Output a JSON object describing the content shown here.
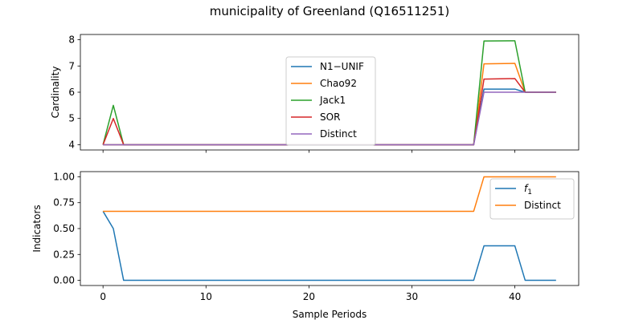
{
  "figure": {
    "title": "municipality of Greenland (Q16511251)",
    "xlabel": "Sample Periods"
  },
  "colors": {
    "blue": "#1f77b4",
    "orange": "#ff7f0e",
    "green": "#2ca02c",
    "red": "#d62728",
    "purple": "#9467bd"
  },
  "chart_data": [
    {
      "type": "line",
      "ylabel": "Cardinality",
      "xlim": [
        -2.2,
        46.2
      ],
      "ylim": [
        3.8,
        8.2
      ],
      "xticks": [
        0,
        10,
        20,
        30,
        40
      ],
      "yticks": [
        4,
        5,
        6,
        7,
        8
      ],
      "show_xtick_labels": false,
      "legend_position": "center",
      "series": [
        {
          "name": "N1−UNIF",
          "color": "#1f77b4",
          "points": [
            [
              0,
              4
            ],
            [
              1,
              4
            ],
            [
              2,
              4
            ],
            [
              36,
              4
            ],
            [
              37,
              6.12
            ],
            [
              40,
              6.12
            ],
            [
              41,
              6
            ],
            [
              44,
              6
            ]
          ]
        },
        {
          "name": "Chao92",
          "color": "#ff7f0e",
          "points": [
            [
              0,
              4
            ],
            [
              1,
              4
            ],
            [
              2,
              4
            ],
            [
              36,
              4
            ],
            [
              37,
              7.08
            ],
            [
              40,
              7.1
            ],
            [
              41,
              6
            ],
            [
              44,
              6
            ]
          ]
        },
        {
          "name": "Jack1",
          "color": "#2ca02c",
          "points": [
            [
              0,
              4
            ],
            [
              1,
              5.5
            ],
            [
              2,
              4
            ],
            [
              36,
              4
            ],
            [
              37,
              7.95
            ],
            [
              40,
              7.96
            ],
            [
              41,
              6
            ],
            [
              44,
              6
            ]
          ]
        },
        {
          "name": "SOR",
          "color": "#d62728",
          "points": [
            [
              0,
              4
            ],
            [
              1,
              5
            ],
            [
              2,
              4
            ],
            [
              36,
              4
            ],
            [
              37,
              6.5
            ],
            [
              40,
              6.52
            ],
            [
              41,
              6
            ],
            [
              44,
              6
            ]
          ]
        },
        {
          "name": "Distinct",
          "color": "#9467bd",
          "points": [
            [
              0,
              4
            ],
            [
              1,
              4
            ],
            [
              2,
              4
            ],
            [
              36,
              4
            ],
            [
              37,
              6
            ],
            [
              40,
              6
            ],
            [
              41,
              6
            ],
            [
              44,
              6
            ]
          ]
        }
      ]
    },
    {
      "type": "line",
      "ylabel": "Indicators",
      "xlim": [
        -2.2,
        46.2
      ],
      "ylim": [
        -0.05,
        1.05
      ],
      "xticks": [
        0,
        10,
        20,
        30,
        40
      ],
      "xtick_labels": [
        "0",
        "10",
        "20",
        "30",
        "40"
      ],
      "yticks": [
        0.0,
        0.25,
        0.5,
        0.75,
        1.0
      ],
      "ytick_labels": [
        "0.00",
        "0.25",
        "0.50",
        "0.75",
        "1.00"
      ],
      "show_xtick_labels": true,
      "legend_position": "upper right",
      "series": [
        {
          "name": "f1",
          "color": "#1f77b4",
          "points": [
            [
              0,
              0.667
            ],
            [
              1,
              0.5
            ],
            [
              2,
              0
            ],
            [
              36,
              0
            ],
            [
              37,
              0.333
            ],
            [
              40,
              0.333
            ],
            [
              41,
              0
            ],
            [
              44,
              0
            ]
          ]
        },
        {
          "name": "Distinct",
          "color": "#ff7f0e",
          "points": [
            [
              0,
              0.667
            ],
            [
              36,
              0.667
            ],
            [
              37,
              1
            ],
            [
              44,
              1
            ]
          ]
        }
      ]
    }
  ]
}
